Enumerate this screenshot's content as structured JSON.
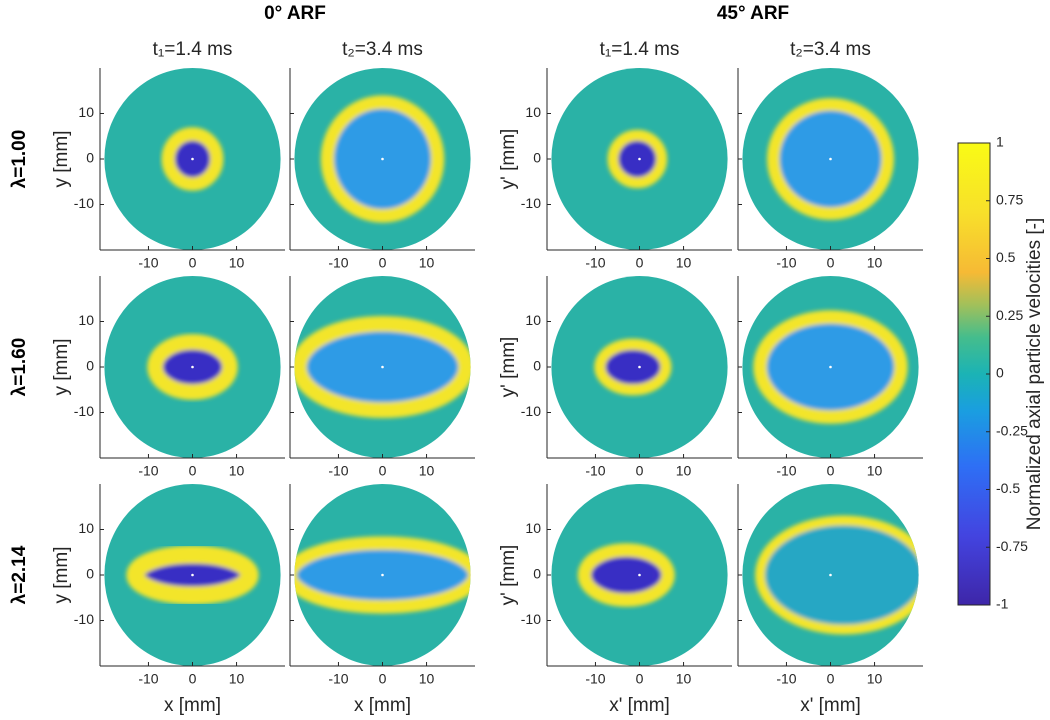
{
  "chart_data": {
    "type": "heatmap",
    "group_titles": [
      "0° ARF",
      "45° ARF"
    ],
    "column_titles": [
      "t₁=1.4 ms",
      "t₂=3.4 ms",
      "t₁=1.4 ms",
      "t₂=3.4 ms"
    ],
    "row_labels": [
      "λ=1.00",
      "λ=1.60",
      "λ=2.14"
    ],
    "xlabels": [
      "x [mm]",
      "x' [mm]"
    ],
    "ylabels": [
      "y [mm]",
      "y' [mm]"
    ],
    "xlim": [
      -21,
      21
    ],
    "ylim": [
      -20,
      20
    ],
    "xticks": [
      -10,
      0,
      10
    ],
    "yticks": [
      -10,
      0,
      10
    ],
    "colorbar": {
      "label": "Normalized axial particle velocities [-]",
      "lim": [
        -1,
        1
      ],
      "ticks": [
        -1,
        -0.75,
        -0.5,
        -0.25,
        0,
        0.25,
        0.5,
        0.75,
        1
      ]
    }
  }
}
